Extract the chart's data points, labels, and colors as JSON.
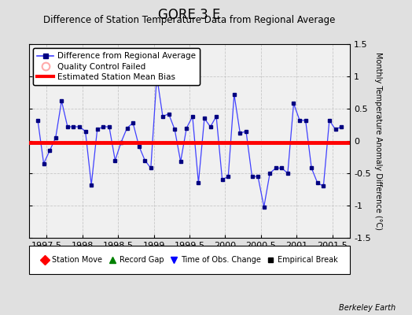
{
  "title": "GORE 3 E",
  "subtitle": "Difference of Station Temperature Data from Regional Average",
  "ylabel_right": "Monthly Temperature Anomaly Difference (°C)",
  "credit": "Berkeley Earth",
  "xlim": [
    1997.25,
    2001.75
  ],
  "ylim": [
    -1.5,
    1.5
  ],
  "xticks": [
    1997.5,
    1998.0,
    1998.5,
    1999.0,
    1999.5,
    2000.0,
    2000.5,
    2001.0,
    2001.5
  ],
  "yticks": [
    -1.5,
    -1.0,
    -0.5,
    0.0,
    0.5,
    1.0,
    1.5
  ],
  "bias_value": -0.02,
  "background_color": "#e0e0e0",
  "plot_bg_color": "#f0f0f0",
  "x_data": [
    1997.375,
    1997.458,
    1997.542,
    1997.625,
    1997.708,
    1997.792,
    1997.875,
    1997.958,
    1998.042,
    1998.125,
    1998.208,
    1998.292,
    1998.375,
    1998.458,
    1998.542,
    1998.625,
    1998.708,
    1998.792,
    1998.875,
    1998.958,
    1999.042,
    1999.125,
    1999.208,
    1999.292,
    1999.375,
    1999.458,
    1999.542,
    1999.625,
    1999.708,
    1999.792,
    1999.875,
    1999.958,
    2000.042,
    2000.125,
    2000.208,
    2000.292,
    2000.375,
    2000.458,
    2000.542,
    2000.625,
    2000.708,
    2000.792,
    2000.875,
    2000.958,
    2001.042,
    2001.125,
    2001.208,
    2001.292,
    2001.375,
    2001.458,
    2001.542,
    2001.625
  ],
  "y_data": [
    0.32,
    -0.35,
    -0.15,
    0.05,
    0.62,
    0.22,
    0.22,
    0.22,
    0.15,
    -0.68,
    0.18,
    0.22,
    0.22,
    -0.3,
    -0.02,
    0.2,
    0.28,
    -0.08,
    -0.3,
    -0.42,
    1.0,
    0.38,
    0.42,
    0.18,
    -0.32,
    0.2,
    0.38,
    -0.65,
    0.35,
    0.22,
    0.38,
    -0.6,
    -0.55,
    0.72,
    0.12,
    0.15,
    -0.55,
    -0.55,
    -1.02,
    -0.5,
    -0.42,
    -0.42,
    -0.5,
    0.58,
    0.32,
    0.32,
    -0.42,
    -0.65,
    -0.7,
    0.32,
    0.18,
    0.22
  ],
  "line_color": "#4040ff",
  "marker_color": "#000080",
  "bias_color": "red",
  "grid_color": "#c8c8c8",
  "title_fontsize": 12,
  "subtitle_fontsize": 8.5,
  "tick_fontsize": 8,
  "ylabel_fontsize": 7
}
